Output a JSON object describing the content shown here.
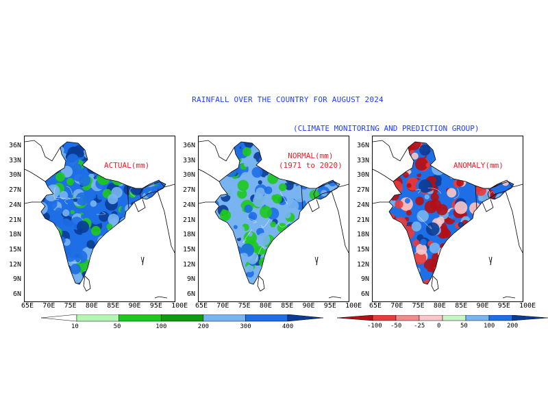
{
  "title": "RAINFALL OVER THE COUNTRY FOR AUGUST 2024",
  "subtitle": "(CLIMATE MONITORING AND PREDICTION GROUP)",
  "panels": [
    {
      "label": "ACTUAL(mm)"
    },
    {
      "label": "NORMAL(mm)\n(1971 to 2020)"
    },
    {
      "label": "ANOMALY(mm)"
    }
  ],
  "lat_ticks": [
    "36N",
    "33N",
    "30N",
    "27N",
    "24N",
    "21N",
    "18N",
    "15N",
    "12N",
    "9N",
    "6N"
  ],
  "lon_ticks": [
    "65E",
    "70E",
    "75E",
    "80E",
    "85E",
    "90E",
    "95E",
    "100E"
  ],
  "rain_scale": {
    "labels": [
      "10",
      "50",
      "100",
      "200",
      "300",
      "400"
    ],
    "colors": [
      "#ffffff",
      "#b4f5b4",
      "#1ec81e",
      "#0f9b0f",
      "#78b4f0",
      "#1e6ee6",
      "#0a3c96"
    ]
  },
  "anomaly_scale": {
    "labels": [
      "-100",
      "-50",
      "-25",
      "0",
      "50",
      "100",
      "200"
    ],
    "colors": [
      "#b40f14",
      "#e63c3c",
      "#f08c8c",
      "#fac8c8",
      "#c8f5c8",
      "#78b4f0",
      "#1e6ee6",
      "#0a3c96"
    ]
  },
  "colors": {
    "title_text": "#1e3cff",
    "panel_label_text": "#e8202a"
  }
}
